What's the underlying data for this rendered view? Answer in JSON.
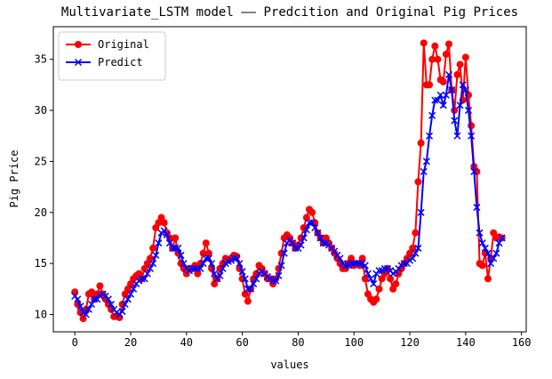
{
  "chart_data": {
    "type": "line",
    "title": "Multivariate_LSTM model —— Predcition and Original Pig Prices",
    "x_label": "values",
    "y_label": "Pig Price",
    "x": [
      0,
      1,
      2,
      3,
      4,
      5,
      6,
      7,
      8,
      9,
      10,
      11,
      12,
      13,
      14,
      15,
      16,
      17,
      18,
      19,
      20,
      21,
      22,
      23,
      24,
      25,
      26,
      27,
      28,
      29,
      30,
      31,
      32,
      33,
      34,
      35,
      36,
      37,
      38,
      39,
      40,
      41,
      42,
      43,
      44,
      45,
      46,
      47,
      48,
      49,
      50,
      51,
      52,
      53,
      54,
      55,
      56,
      57,
      58,
      59,
      60,
      61,
      62,
      63,
      64,
      65,
      66,
      67,
      68,
      69,
      70,
      71,
      72,
      73,
      74,
      75,
      76,
      77,
      78,
      79,
      80,
      81,
      82,
      83,
      84,
      85,
      86,
      87,
      88,
      89,
      90,
      91,
      92,
      93,
      94,
      95,
      96,
      97,
      98,
      99,
      100,
      101,
      102,
      103,
      104,
      105,
      106,
      107,
      108,
      109,
      110,
      111,
      112,
      113,
      114,
      115,
      116,
      117,
      118,
      119,
      120,
      121,
      122,
      123,
      124,
      125,
      126,
      127,
      128,
      129,
      130,
      131,
      132,
      133,
      134,
      135,
      136,
      137,
      138,
      139,
      140,
      141,
      142,
      143,
      144,
      145,
      146,
      147,
      148,
      149,
      150,
      151,
      152,
      153
    ],
    "series": [
      {
        "name": "Original",
        "color": "#ff0000",
        "marker": "o",
        "values": [
          12.2,
          11.0,
          10.2,
          9.6,
          10.5,
          12.0,
          12.2,
          11.5,
          12.0,
          12.8,
          12.0,
          11.5,
          11.0,
          10.5,
          9.8,
          9.8,
          9.7,
          11.0,
          12.0,
          12.5,
          13.0,
          13.5,
          13.8,
          14.0,
          13.5,
          14.5,
          15.0,
          15.5,
          16.5,
          18.5,
          19.0,
          19.5,
          19.0,
          18.0,
          17.5,
          16.5,
          17.5,
          16.0,
          15.0,
          14.5,
          14.0,
          14.5,
          14.5,
          14.8,
          14.0,
          15.0,
          16.0,
          17.0,
          16.0,
          14.5,
          13.0,
          13.5,
          14.5,
          15.0,
          15.5,
          15.3,
          15.5,
          15.8,
          15.7,
          14.5,
          13.5,
          12.0,
          11.3,
          12.5,
          13.5,
          14.0,
          14.8,
          14.5,
          14.0,
          13.5,
          13.5,
          13.0,
          13.5,
          14.5,
          16.0,
          17.5,
          17.8,
          17.5,
          17.0,
          16.5,
          16.8,
          17.5,
          18.5,
          19.5,
          20.3,
          20.0,
          19.0,
          18.0,
          17.5,
          17.0,
          17.5,
          17.0,
          16.5,
          16.0,
          15.5,
          15.0,
          14.5,
          14.5,
          15.0,
          15.5,
          14.8,
          15.0,
          14.8,
          15.5,
          13.5,
          12.0,
          11.5,
          11.2,
          11.5,
          12.5,
          13.5,
          14.0,
          14.5,
          13.5,
          12.5,
          13.0,
          14.0,
          14.5,
          15.0,
          15.5,
          16.0,
          16.5,
          18.0,
          23.0,
          26.8,
          36.6,
          32.5,
          32.5,
          35.0,
          36.3,
          35.0,
          33.0,
          32.8,
          35.5,
          36.5,
          32.0,
          30.0,
          33.5,
          34.5,
          31.0,
          35.2,
          31.5,
          28.5,
          24.5,
          24.0,
          15.0,
          14.8,
          16.0,
          13.5,
          15.5,
          18.0,
          17.5,
          17.6,
          17.5
        ]
      },
      {
        "name": "Predict",
        "color": "#0000ff",
        "marker": "x",
        "values": [
          11.8,
          11.5,
          10.8,
          10.2,
          10.0,
          10.5,
          11.0,
          11.5,
          11.5,
          11.8,
          12.0,
          11.8,
          11.5,
          11.0,
          10.5,
          10.2,
          10.0,
          10.3,
          11.0,
          11.5,
          12.0,
          12.5,
          13.0,
          13.3,
          13.5,
          13.5,
          14.0,
          14.5,
          15.0,
          15.8,
          17.0,
          18.0,
          18.2,
          17.8,
          17.0,
          16.5,
          16.5,
          16.5,
          15.8,
          15.0,
          14.5,
          14.3,
          14.5,
          14.5,
          14.5,
          14.5,
          15.0,
          15.5,
          15.5,
          15.0,
          14.0,
          13.5,
          13.8,
          14.5,
          15.0,
          15.2,
          15.3,
          15.5,
          15.5,
          15.0,
          14.2,
          13.5,
          12.5,
          12.5,
          13.0,
          13.5,
          14.0,
          14.2,
          14.0,
          13.7,
          13.5,
          13.3,
          13.3,
          13.8,
          14.8,
          16.0,
          17.0,
          17.3,
          17.0,
          16.5,
          16.5,
          16.8,
          17.5,
          18.3,
          19.0,
          19.0,
          18.5,
          18.0,
          17.5,
          17.0,
          17.0,
          16.8,
          16.5,
          16.2,
          15.8,
          15.5,
          15.0,
          14.8,
          14.8,
          15.0,
          15.0,
          15.0,
          15.0,
          15.0,
          14.8,
          14.0,
          13.5,
          13.0,
          14.0,
          14.3,
          14.3,
          14.5,
          14.5,
          14.3,
          14.0,
          14.2,
          14.5,
          14.8,
          15.0,
          15.0,
          15.3,
          15.5,
          16.0,
          16.5,
          20.0,
          24.0,
          25.0,
          27.5,
          29.5,
          31.0,
          31.0,
          31.5,
          30.5,
          31.5,
          33.5,
          32.0,
          29.0,
          27.5,
          30.5,
          32.5,
          32.0,
          30.0,
          27.5,
          24.0,
          20.5,
          18.0,
          17.0,
          16.5,
          16.0,
          15.0,
          15.5,
          16.0,
          17.0,
          17.5
        ]
      }
    ],
    "xlim": [
      -7.7,
      161.7
    ],
    "ylim": [
      8.3,
      38.2
    ],
    "xticks": [
      0,
      20,
      40,
      60,
      80,
      100,
      120,
      140,
      160
    ],
    "yticks": [
      10,
      15,
      20,
      25,
      30,
      35
    ],
    "grid": false,
    "legend": "upper left"
  }
}
